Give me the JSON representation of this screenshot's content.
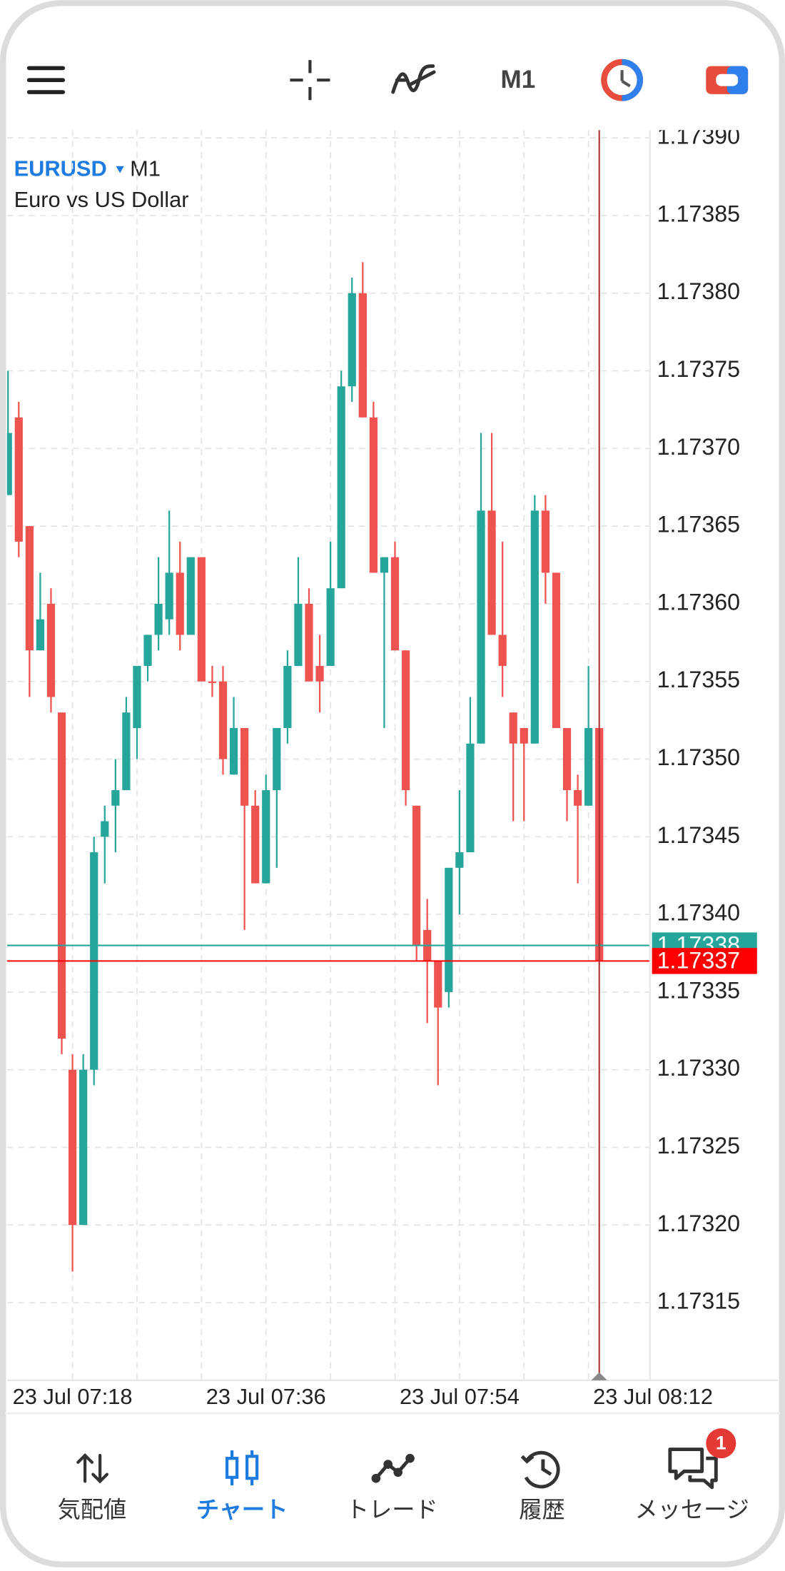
{
  "toolbar": {
    "timeframe": "M1"
  },
  "chart_data": {
    "type": "candlestick",
    "symbol": "EURUSD",
    "timeframe": "M1",
    "description": "Euro vs US Dollar",
    "categories": [
      null,
      null,
      null,
      null,
      null,
      null,
      "23 Jul 07:18",
      null,
      null,
      null,
      null,
      null,
      null,
      null,
      null,
      null,
      null,
      null,
      null,
      null,
      null,
      null,
      null,
      null,
      "23 Jul 07:36",
      null,
      null,
      null,
      null,
      null,
      null,
      null,
      null,
      null,
      null,
      null,
      null,
      null,
      null,
      null,
      null,
      null,
      "23 Jul 07:54",
      null,
      null,
      null,
      null,
      null,
      null,
      null,
      null,
      null,
      null,
      null,
      null,
      null,
      null,
      null,
      null,
      null,
      "23 Jul 08:12"
    ],
    "open": [
      1.17367,
      1.17372,
      1.17365,
      1.17357,
      1.1736,
      1.17353,
      1.1733,
      1.1732,
      1.1733,
      1.17345,
      1.17347,
      1.17348,
      1.17352,
      1.17356,
      1.17358,
      1.17359,
      1.17362,
      1.17358,
      1.17363,
      1.17355,
      1.17355,
      1.17349,
      1.17352,
      1.17347,
      1.17342,
      1.17348,
      1.17352,
      1.17356,
      1.1736,
      1.17356,
      1.17356,
      1.17361,
      1.17374,
      1.1738,
      1.17372,
      1.17362,
      1.17363,
      1.17357,
      1.17347,
      1.17339,
      1.17337,
      1.17335,
      1.17343,
      1.17344,
      1.17351,
      1.17366,
      1.17358,
      1.17353,
      1.17352,
      1.17351,
      1.17366,
      1.17362,
      1.17352,
      1.17348,
      1.17347,
      1.17352,
      null,
      null,
      null,
      null,
      null
    ],
    "high": [
      1.17375,
      1.17373,
      1.17365,
      1.17362,
      1.17361,
      1.17353,
      1.17331,
      1.17331,
      1.17345,
      1.17347,
      1.1735,
      1.17354,
      1.17356,
      1.17358,
      1.17363,
      1.17366,
      1.17364,
      1.17363,
      1.17363,
      1.17356,
      1.17356,
      1.17354,
      1.17352,
      1.17348,
      1.17349,
      1.17352,
      1.17357,
      1.17363,
      1.17361,
      1.17358,
      1.17364,
      1.17375,
      1.17381,
      1.17382,
      1.17373,
      1.17363,
      1.17364,
      1.17357,
      1.17347,
      1.17341,
      1.17337,
      1.17343,
      1.17348,
      1.17354,
      1.17371,
      1.17371,
      1.17364,
      1.17353,
      1.17352,
      1.17367,
      1.17367,
      1.17362,
      1.17352,
      1.17349,
      1.17356,
      1.17352,
      null,
      null,
      null,
      null,
      null
    ],
    "low": [
      1.17367,
      1.17363,
      1.17354,
      1.17357,
      1.17353,
      1.17331,
      1.17317,
      1.1732,
      1.17329,
      1.17342,
      1.17344,
      1.17348,
      1.1735,
      1.17355,
      1.17357,
      1.17358,
      1.17357,
      1.17358,
      1.17355,
      1.17354,
      1.17349,
      1.17349,
      1.17339,
      1.17342,
      1.17342,
      1.17343,
      1.17351,
      1.17356,
      1.17355,
      1.17353,
      1.17356,
      1.17361,
      1.17373,
      1.17372,
      1.17362,
      1.17352,
      1.17357,
      1.17347,
      1.17337,
      1.17333,
      1.17329,
      1.17334,
      1.1734,
      1.17344,
      1.17351,
      1.17358,
      1.17354,
      1.17346,
      1.17346,
      1.17351,
      1.1736,
      1.17352,
      1.17346,
      1.17342,
      1.17347,
      1.17337,
      null,
      null,
      null,
      null,
      null
    ],
    "close": [
      1.17371,
      1.17364,
      1.17357,
      1.17359,
      1.17354,
      1.17332,
      1.1732,
      1.1733,
      1.17344,
      1.17346,
      1.17348,
      1.17353,
      1.17356,
      1.17358,
      1.1736,
      1.17362,
      1.17358,
      1.17363,
      1.17355,
      1.17355,
      1.1735,
      1.17352,
      1.17347,
      1.17342,
      1.17348,
      1.17352,
      1.17356,
      1.1736,
      1.17355,
      1.17355,
      1.17361,
      1.17374,
      1.1738,
      1.17372,
      1.17362,
      1.17363,
      1.17357,
      1.17348,
      1.17338,
      1.17337,
      1.17334,
      1.17343,
      1.17344,
      1.17351,
      1.17366,
      1.17358,
      1.17356,
      1.17351,
      1.17351,
      1.17366,
      1.17362,
      1.17352,
      1.17348,
      1.17347,
      1.17352,
      1.17337,
      null,
      null,
      null,
      null,
      null
    ],
    "up_color": "#26a69a",
    "down_color": "#ef5350",
    "ylim": [
      1.1731,
      1.173905
    ],
    "yticks": [
      {
        "value": 1.1739,
        "label": "1.17390"
      },
      1.17385,
      {
        "value": 1.1738,
        "label": "1.17380"
      },
      1.17375,
      {
        "value": 1.1737,
        "label": "1.17370"
      },
      1.17365,
      {
        "value": 1.1736,
        "label": "1.17360"
      },
      1.17355,
      {
        "value": 1.1735,
        "label": "1.17350"
      },
      1.17345,
      {
        "value": 1.1734,
        "label": "1.17340"
      },
      1.17335,
      {
        "value": 1.1733,
        "label": "1.17330"
      },
      1.17325,
      {
        "value": 1.1732,
        "label": "1.17320"
      },
      1.17315
    ],
    "grid": true,
    "price_lines": [
      {
        "value": 1.17338,
        "color": "#26a69a"
      },
      {
        "value": 1.17337,
        "color": "#ff0000"
      }
    ]
  },
  "nav": {
    "items": [
      {
        "label": "気配値"
      },
      {
        "label": "チャート"
      },
      {
        "label": "トレード"
      },
      {
        "label": "履歴"
      },
      {
        "label": "メッセージ",
        "badge": 1
      }
    ]
  }
}
